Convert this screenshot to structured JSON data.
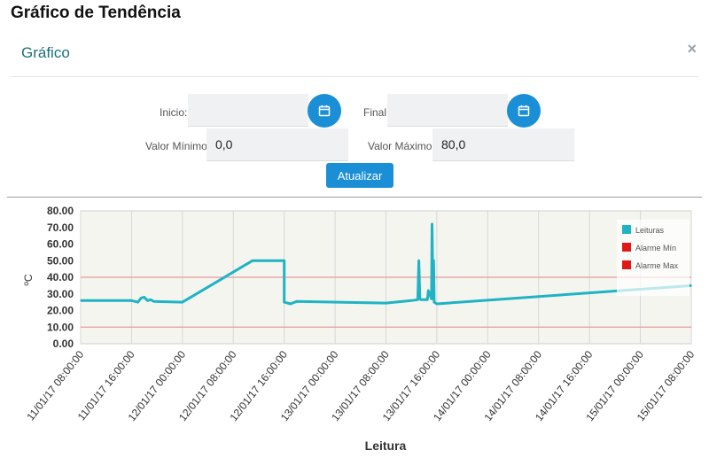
{
  "page": {
    "heading": "Gráfico de Tendência"
  },
  "modal": {
    "title": "Gráfico",
    "close_icon": "×"
  },
  "form": {
    "start_label": "Inicio:",
    "start_value": "",
    "end_label": "Final:",
    "end_value": "",
    "min_label": "Valor Mínimo:",
    "min_value": "0,0",
    "max_label": "Valor Máximo:",
    "max_value": "80,0",
    "update_label": "Atualizar",
    "calendar_icon": "calendar-icon"
  },
  "colors": {
    "accent": "#1a8fd6",
    "series": "#1fb3c4",
    "alarm": "#e01818",
    "plot_bg": "#f5f5f0"
  },
  "chart_data": {
    "type": "line",
    "xlabel": "Leitura",
    "ylabel": "ºC",
    "ylim": [
      0,
      80
    ],
    "y_ticks": [
      "0.00",
      "10.00",
      "20.00",
      "30.00",
      "40.00",
      "50.00",
      "60.00",
      "70.00",
      "80.00"
    ],
    "x_ticks": [
      "11/01/17 08:00:00",
      "11/01/17 16:00:00",
      "12/01/17 00:00:00",
      "12/01/17 08:00:00",
      "12/01/17 16:00:00",
      "13/01/17 00:00:00",
      "13/01/17 08:00:00",
      "13/01/17 16:00:00",
      "14/01/17 00:00:00",
      "14/01/17 08:00:00",
      "14/01/17 16:00:00",
      "15/01/17 00:00:00",
      "15/01/17 08:00:00"
    ],
    "grid": "vertical",
    "legend_position": "top-right",
    "legend": [
      {
        "label": "Leituras",
        "color": "#1fb3c4"
      },
      {
        "label": "Alarme Mín",
        "color": "#e01818"
      },
      {
        "label": "Alarme Max",
        "color": "#e01818"
      }
    ],
    "alarm_min": 10,
    "alarm_max": 40,
    "series": [
      {
        "name": "Leituras",
        "x": [
          "11/01/17 08:00",
          "11/01/17 16:00",
          "11/01/17 17:00",
          "11/01/17 17:30",
          "11/01/17 18:00",
          "11/01/17 18:30",
          "11/01/17 19:00",
          "11/01/17 19:30",
          "12/01/17 00:00",
          "12/01/17 11:00",
          "12/01/17 16:00",
          "12/01/17 16:00",
          "12/01/17 17:00",
          "12/01/17 18:00",
          "13/01/17 08:00",
          "13/01/17 12:00",
          "13/01/17 13:00",
          "13/01/17 13:10",
          "13/01/17 13:20",
          "13/01/17 13:30",
          "13/01/17 14:30",
          "13/01/17 14:40",
          "13/01/17 15:10",
          "13/01/17 15:15",
          "13/01/17 15:25",
          "13/01/17 15:30",
          "13/01/17 15:35",
          "13/01/17 16:00",
          "15/01/17 08:00"
        ],
        "values": [
          26,
          26,
          25,
          27.5,
          28,
          26,
          26.5,
          25.5,
          25,
          50,
          50,
          25,
          24,
          25.5,
          24.5,
          26,
          26.5,
          50,
          27,
          26.5,
          26.5,
          32,
          27,
          72,
          27,
          50,
          25,
          24,
          35
        ]
      }
    ]
  }
}
